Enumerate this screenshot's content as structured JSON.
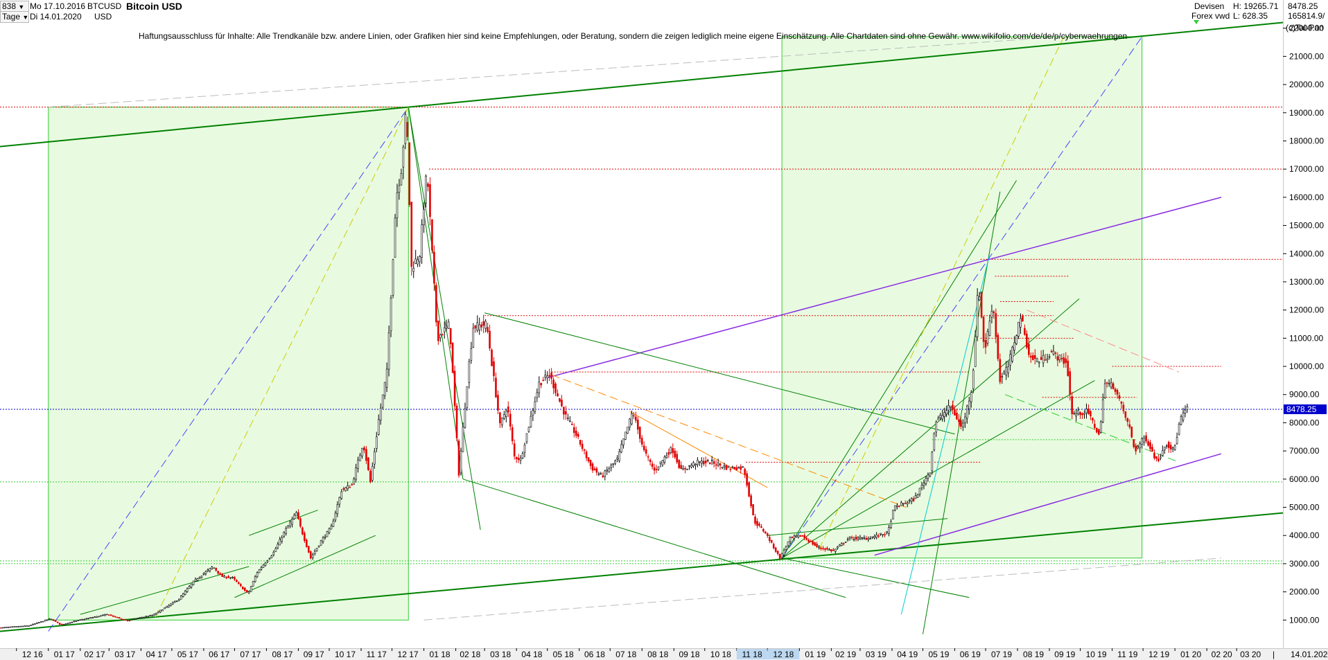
{
  "header": {
    "bar_count": "838",
    "start_date": "Mo 17.10.2016",
    "end_date": "Di 14.01.2020",
    "interval": "Tage",
    "symbol": "BTCUSD",
    "currency": "USD",
    "title": "Bitcoin USD",
    "category": "Devisen",
    "feed": "Forex vwd",
    "high_label": "H: 19265.71",
    "low_label": "L: 628.35",
    "last": "8478.25",
    "volume": "165814.9/",
    "copyright": "(c)Tai-Pan"
  },
  "disclaimer": "Haftungsausschluss für Inhalte: Alle Trendkanäle bzw. andere Linien, oder Grafiken hier sind keine Empfehlungen, oder Beratung, sondern die zeigen lediglich meine eigene Einschätzung. Alle Chartdaten sind ohne Gewähr.  www.wikifolio.com/de/de/p/cyberwaehrungen",
  "colors": {
    "up_candle": "#000000",
    "down_candle": "#e00000",
    "trend_green": "#008000",
    "purple": "#8a2be2",
    "resistance_red": "#e00000",
    "current_price_blue": "#0000cc",
    "box_fill": "#e8fbe0",
    "box_border": "#33cc33"
  },
  "chart_data": {
    "type": "candlestick",
    "title": "Bitcoin USD",
    "ylim": [
      0,
      23000
    ],
    "xlim": [
      "2016-11-15",
      "2020-04-15"
    ],
    "y_ticks": [
      1000,
      2000,
      3000,
      4000,
      5000,
      6000,
      7000,
      8000,
      9000,
      10000,
      11000,
      12000,
      13000,
      14000,
      15000,
      16000,
      17000,
      18000,
      19000,
      20000,
      21000,
      22000
    ],
    "y_tick_labels": [
      "1000.00",
      "2000.00",
      "3000.00",
      "4000.00",
      "5000.00",
      "6000.00",
      "7000.00",
      "8000.00",
      "9000.00",
      "10000.00",
      "11000.00",
      "12000.00",
      "13000.00",
      "14000.00",
      "15000.00",
      "16000.00",
      "17000.00",
      "18000.00",
      "19000.00",
      "20000.00",
      "21000.00",
      "22000.00"
    ],
    "x_ticks": [
      "2016-12-01",
      "2017-01-01",
      "2017-02-01",
      "2017-03-01",
      "2017-04-01",
      "2017-05-01",
      "2017-06-01",
      "2017-07-01",
      "2017-08-01",
      "2017-09-01",
      "2017-10-01",
      "2017-11-01",
      "2017-12-01",
      "2018-01-01",
      "2018-02-01",
      "2018-03-01",
      "2018-04-01",
      "2018-05-01",
      "2018-06-01",
      "2018-07-01",
      "2018-08-01",
      "2018-09-01",
      "2018-10-01",
      "2018-11-01",
      "2018-12-01",
      "2019-01-01",
      "2019-02-01",
      "2019-03-01",
      "2019-04-01",
      "2019-05-01",
      "2019-06-01",
      "2019-07-01",
      "2019-08-01",
      "2019-09-01",
      "2019-10-01",
      "2019-11-01",
      "2019-12-01",
      "2020-01-01",
      "2020-02-01",
      "2020-03-01"
    ],
    "x_tick_labels": [
      "12 16",
      "01 17",
      "02 17",
      "03 17",
      "04 17",
      "05 17",
      "06 17",
      "07 17",
      "08 17",
      "09 17",
      "10 17",
      "11 17",
      "12 17",
      "01 18",
      "02 18",
      "03 18",
      "04 18",
      "05 18",
      "06 18",
      "07 18",
      "08 18",
      "09 18",
      "10 18",
      "11 18",
      "12 18",
      "01 19",
      "02 19",
      "03 19",
      "04 19",
      "05 19",
      "06 19",
      "07 19",
      "08 19",
      "09 19",
      "10 19",
      "11 19",
      "12 19",
      "01 20",
      "02 20",
      "03 20"
    ],
    "current_date_label": "14.01.2020",
    "current_price": 8478.25,
    "current_price_label": "8478.25",
    "price_path": [
      [
        "2016-11-15",
        720
      ],
      [
        "2016-12-15",
        800
      ],
      [
        "2017-01-05",
        1050
      ],
      [
        "2017-01-15",
        830
      ],
      [
        "2017-02-01",
        990
      ],
      [
        "2017-03-01",
        1200
      ],
      [
        "2017-03-20",
        980
      ],
      [
        "2017-04-15",
        1180
      ],
      [
        "2017-05-10",
        1750
      ],
      [
        "2017-05-25",
        2400
      ],
      [
        "2017-06-12",
        2900
      ],
      [
        "2017-06-20",
        2550
      ],
      [
        "2017-07-01",
        2500
      ],
      [
        "2017-07-16",
        1930
      ],
      [
        "2017-07-25",
        2700
      ],
      [
        "2017-08-10",
        3400
      ],
      [
        "2017-08-20",
        4100
      ],
      [
        "2017-09-01",
        4800
      ],
      [
        "2017-09-05",
        4300
      ],
      [
        "2017-09-15",
        3200
      ],
      [
        "2017-09-25",
        3800
      ],
      [
        "2017-10-05",
        4300
      ],
      [
        "2017-10-15",
        5600
      ],
      [
        "2017-10-25",
        5800
      ],
      [
        "2017-11-05",
        7300
      ],
      [
        "2017-11-12",
        5900
      ],
      [
        "2017-11-20",
        8100
      ],
      [
        "2017-11-28",
        9800
      ],
      [
        "2017-12-07",
        16000
      ],
      [
        "2017-12-12",
        17000
      ],
      [
        "2017-12-17",
        19200
      ],
      [
        "2017-12-22",
        13500
      ],
      [
        "2017-12-30",
        14000
      ],
      [
        "2018-01-06",
        17000
      ],
      [
        "2018-01-16",
        11000
      ],
      [
        "2018-01-28",
        11500
      ],
      [
        "2018-02-06",
        6200
      ],
      [
        "2018-02-15",
        9800
      ],
      [
        "2018-02-20",
        11400
      ],
      [
        "2018-03-05",
        11500
      ],
      [
        "2018-03-18",
        7900
      ],
      [
        "2018-03-25",
        8600
      ],
      [
        "2018-04-01",
        6800
      ],
      [
        "2018-04-07",
        6700
      ],
      [
        "2018-04-25",
        9400
      ],
      [
        "2018-05-05",
        9700
      ],
      [
        "2018-05-20",
        8300
      ],
      [
        "2018-06-01",
        7500
      ],
      [
        "2018-06-15",
        6400
      ],
      [
        "2018-06-25",
        6100
      ],
      [
        "2018-07-10",
        6700
      ],
      [
        "2018-07-25",
        8400
      ],
      [
        "2018-08-05",
        7000
      ],
      [
        "2018-08-15",
        6300
      ],
      [
        "2018-09-01",
        7100
      ],
      [
        "2018-09-10",
        6300
      ],
      [
        "2018-09-25",
        6600
      ],
      [
        "2018-10-10",
        6600
      ],
      [
        "2018-10-25",
        6400
      ],
      [
        "2018-11-10",
        6400
      ],
      [
        "2018-11-20",
        4500
      ],
      [
        "2018-12-01",
        4100
      ],
      [
        "2018-12-15",
        3200
      ],
      [
        "2018-12-25",
        3900
      ],
      [
        "2019-01-05",
        4000
      ],
      [
        "2019-01-20",
        3600
      ],
      [
        "2019-02-05",
        3450
      ],
      [
        "2019-02-20",
        3900
      ],
      [
        "2019-03-10",
        3900
      ],
      [
        "2019-03-30",
        4100
      ],
      [
        "2019-04-05",
        5000
      ],
      [
        "2019-04-25",
        5300
      ],
      [
        "2019-05-10",
        6300
      ],
      [
        "2019-05-15",
        8000
      ],
      [
        "2019-05-30",
        8600
      ],
      [
        "2019-06-10",
        7800
      ],
      [
        "2019-06-20",
        9300
      ],
      [
        "2019-06-26",
        13000
      ],
      [
        "2019-07-02",
        10500
      ],
      [
        "2019-07-10",
        12300
      ],
      [
        "2019-07-17",
        9500
      ],
      [
        "2019-07-25",
        10000
      ],
      [
        "2019-08-06",
        11800
      ],
      [
        "2019-08-15",
        10300
      ],
      [
        "2019-08-25",
        10200
      ],
      [
        "2019-09-05",
        10500
      ],
      [
        "2019-09-20",
        10100
      ],
      [
        "2019-09-25",
        8300
      ],
      [
        "2019-10-10",
        8400
      ],
      [
        "2019-10-22",
        7500
      ],
      [
        "2019-10-26",
        9400
      ],
      [
        "2019-11-05",
        9300
      ],
      [
        "2019-11-20",
        7800
      ],
      [
        "2019-11-25",
        7000
      ],
      [
        "2019-12-05",
        7500
      ],
      [
        "2019-12-17",
        6600
      ],
      [
        "2019-12-25",
        7300
      ],
      [
        "2020-01-02",
        7000
      ],
      [
        "2020-01-08",
        8100
      ],
      [
        "2020-01-14",
        8480
      ]
    ],
    "horizontal_levels": [
      {
        "value": 19200,
        "color": "#e00000",
        "style": "dotted",
        "from": "2016-11-15",
        "to": "2020-04-15"
      },
      {
        "value": 17000,
        "color": "#e00000",
        "style": "dotted",
        "from": "2018-01-06",
        "to": "2020-04-15"
      },
      {
        "value": 13800,
        "color": "#e00000",
        "style": "dotted",
        "from": "2019-06-26",
        "to": "2020-04-15"
      },
      {
        "value": 13200,
        "color": "#e00000",
        "style": "dotted",
        "from": "2019-07-10",
        "to": "2019-09-20"
      },
      {
        "value": 12300,
        "color": "#e00000",
        "style": "dotted",
        "from": "2019-07-15",
        "to": "2019-09-05"
      },
      {
        "value": 11800,
        "color": "#e00000",
        "style": "dotted",
        "from": "2018-03-01",
        "to": "2019-09-05"
      },
      {
        "value": 11000,
        "color": "#e00000",
        "style": "dotted",
        "from": "2019-06-26",
        "to": "2019-09-25"
      },
      {
        "value": 10000,
        "color": "#e00000",
        "style": "dotted",
        "from": "2019-11-01",
        "to": "2020-02-15"
      },
      {
        "value": 9800,
        "color": "#e00000",
        "style": "dotted",
        "from": "2018-05-05",
        "to": "2019-06-15"
      },
      {
        "value": 8900,
        "color": "#e00000",
        "style": "dotted",
        "from": "2019-08-25",
        "to": "2019-11-25"
      },
      {
        "value": 8478.25,
        "color": "#0000cc",
        "style": "dotted",
        "from": "2016-11-15",
        "to": "2020-04-15"
      },
      {
        "value": 7400,
        "color": "#33cc33",
        "style": "dotted",
        "from": "2019-05-10",
        "to": "2019-11-25"
      },
      {
        "value": 6600,
        "color": "#e00000",
        "style": "dotted",
        "from": "2018-11-10",
        "to": "2019-06-26"
      },
      {
        "value": 5900,
        "color": "#33cc33",
        "style": "dotted",
        "from": "2016-11-15",
        "to": "2020-04-15"
      },
      {
        "value": 3100,
        "color": "#33cc33",
        "style": "dotted",
        "from": "2016-11-15",
        "to": "2020-04-15"
      },
      {
        "value": 3000,
        "color": "#33cc33",
        "style": "dotted",
        "from": "2016-11-15",
        "to": "2020-04-15"
      }
    ],
    "trend_lines": [
      {
        "from": [
          "2016-11-15",
          17800
        ],
        "to": [
          "2020-04-15",
          22200
        ],
        "color": "#008000",
        "width": 2,
        "style": "solid"
      },
      {
        "from": [
          "2016-11-15",
          600
        ],
        "to": [
          "2020-04-15",
          4800
        ],
        "color": "#008000",
        "width": 2,
        "style": "solid"
      },
      {
        "from": [
          "2018-05-01",
          9600
        ],
        "to": [
          "2020-02-15",
          16000
        ],
        "color": "#8a2be2",
        "width": 1.5,
        "style": "solid"
      },
      {
        "from": [
          "2019-03-15",
          3300
        ],
        "to": [
          "2020-02-15",
          6900
        ],
        "color": "#8a2be2",
        "width": 1.5,
        "style": "solid"
      },
      {
        "from": [
          "2018-02-08",
          6000
        ],
        "to": [
          "2019-02-15",
          1800
        ],
        "color": "#008000",
        "width": 1,
        "style": "solid"
      },
      {
        "from": [
          "2018-03-01",
          11900
        ],
        "to": [
          "2019-06-01",
          7600
        ],
        "color": "#008000",
        "width": 1,
        "style": "solid"
      },
      {
        "from": [
          "2017-12-17",
          19200
        ],
        "to": [
          "2018-02-25",
          4200
        ],
        "color": "#008000",
        "width": 1,
        "style": "solid"
      },
      {
        "from": [
          "2017-12-17",
          19200
        ],
        "to": [
          "2018-02-08",
          6000
        ],
        "color": "#008000",
        "width": 1,
        "style": "solid"
      },
      {
        "from": [
          "2017-02-01",
          1200
        ],
        "to": [
          "2017-07-15",
          2900
        ],
        "color": "#008000",
        "width": 1,
        "style": "solid"
      },
      {
        "from": [
          "2017-07-15",
          4000
        ],
        "to": [
          "2017-09-20",
          4900
        ],
        "color": "#008000",
        "width": 1,
        "style": "solid"
      },
      {
        "from": [
          "2017-07-01",
          1800
        ],
        "to": [
          "2017-11-15",
          4000
        ],
        "color": "#008000",
        "width": 1,
        "style": "solid"
      },
      {
        "from": [
          "2018-12-15",
          3200
        ],
        "to": [
          "2019-07-31",
          16600
        ],
        "color": "#008000",
        "width": 1,
        "style": "solid"
      },
      {
        "from": [
          "2018-12-15",
          3200
        ],
        "to": [
          "2019-09-30",
          12400
        ],
        "color": "#008000",
        "width": 1,
        "style": "solid"
      },
      {
        "from": [
          "2018-12-15",
          3200
        ],
        "to": [
          "2019-10-15",
          9500
        ],
        "color": "#008000",
        "width": 1,
        "style": "solid"
      },
      {
        "from": [
          "2019-05-01",
          500
        ],
        "to": [
          "2019-07-15",
          16200
        ],
        "color": "#008000",
        "width": 1,
        "style": "solid"
      },
      {
        "from": [
          "2019-04-10",
          1200
        ],
        "to": [
          "2019-07-05",
          14000
        ],
        "color": "#00cccc",
        "width": 1,
        "style": "solid"
      },
      {
        "from": [
          "2018-12-01",
          4000
        ],
        "to": [
          "2019-05-25",
          4600
        ],
        "color": "#008000",
        "width": 1,
        "style": "solid"
      },
      {
        "from": [
          "2018-12-15",
          3200
        ],
        "to": [
          "2019-06-15",
          1800
        ],
        "color": "#008000",
        "width": 1,
        "style": "solid"
      },
      {
        "from": [
          "2018-07-20",
          8400
        ],
        "to": [
          "2018-12-01",
          5700
        ],
        "color": "#ff8800",
        "width": 1,
        "style": "solid"
      },
      {
        "from": [
          "2018-05-05",
          9700
        ],
        "to": [
          "2019-04-15",
          5000
        ],
        "color": "#ff8800",
        "width": 1,
        "style": "dashed"
      },
      {
        "from": [
          "2017-01-01",
          600
        ],
        "to": [
          "2017-12-17",
          19200
        ],
        "color": "#4444ff",
        "width": 1,
        "style": "dashed"
      },
      {
        "from": [
          "2017-04-15",
          1100
        ],
        "to": [
          "2017-12-17",
          19200
        ],
        "color": "#cccc00",
        "width": 1,
        "style": "dashed"
      },
      {
        "from": [
          "2018-12-15",
          3200
        ],
        "to": [
          "2019-11-30",
          21700
        ],
        "color": "#4444ff",
        "width": 1,
        "style": "dashed"
      },
      {
        "from": [
          "2019-01-20",
          3500
        ],
        "to": [
          "2019-09-15",
          21700
        ],
        "color": "#cccc00",
        "width": 1,
        "style": "dashed"
      },
      {
        "from": [
          "2017-01-01",
          19200
        ],
        "to": [
          "2019-09-15",
          21700
        ],
        "color": "#bbbbbb",
        "width": 1,
        "style": "dashed"
      },
      {
        "from": [
          "2018-01-01",
          1000
        ],
        "to": [
          "2020-02-15",
          3200
        ],
        "color": "#bbbbbb",
        "width": 1,
        "style": "dashed"
      },
      {
        "from": [
          "2019-07-20",
          9000
        ],
        "to": [
          "2020-01-05",
          6600
        ],
        "color": "#33cc33",
        "width": 1,
        "style": "dashed"
      },
      {
        "from": [
          "2019-08-10",
          12000
        ],
        "to": [
          "2020-01-05",
          9800
        ],
        "color": "#ff8888",
        "width": 1,
        "style": "dashed"
      }
    ],
    "highlight_boxes": [
      {
        "from": [
          "2017-01-01",
          1000
        ],
        "to": [
          "2017-12-17",
          19200
        ],
        "color": "#33cc33"
      },
      {
        "from": [
          "2018-12-15",
          3200
        ],
        "to": [
          "2019-11-30",
          21700
        ],
        "color": "#33cc33"
      }
    ]
  }
}
